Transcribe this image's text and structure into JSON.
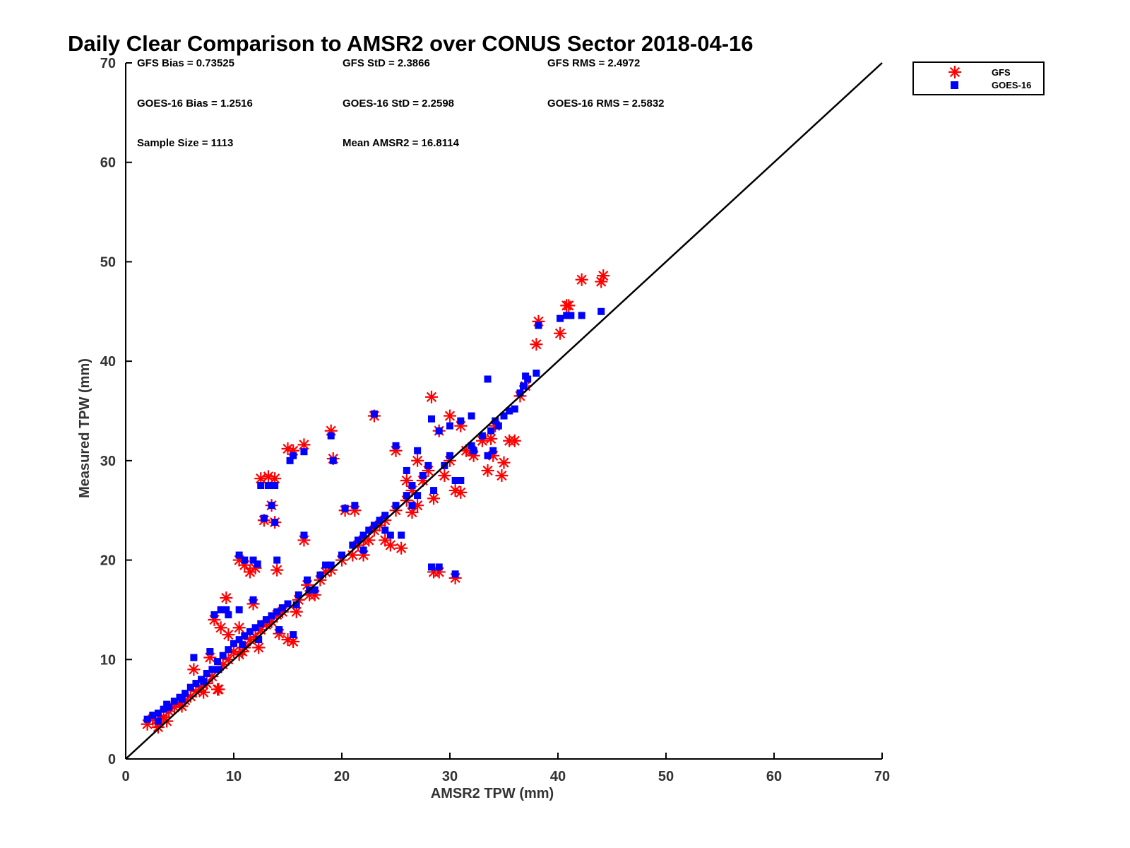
{
  "chart_data": {
    "type": "scatter",
    "title": "Daily Clear Comparison to AMSR2 over CONUS Sector 2018-04-16",
    "xlabel": "AMSR2 TPW (mm)",
    "ylabel": "Measured TPW (mm)",
    "xlim": [
      0,
      70
    ],
    "ylim": [
      0,
      70
    ],
    "xticks": [
      "0",
      "10",
      "20",
      "30",
      "40",
      "50",
      "60",
      "70"
    ],
    "yticks": [
      "0",
      "10",
      "20",
      "30",
      "40",
      "50",
      "60",
      "70"
    ],
    "grid": false,
    "legend_position": "top-right outside",
    "stats": {
      "gfs_bias": "GFS Bias = 0.73525",
      "gfs_std": "GFS StD = 2.3866",
      "gfs_rms": "GFS RMS = 2.4972",
      "goes_bias": "GOES-16 Bias = 1.2516",
      "goes_std": "GOES-16 StD = 2.2598",
      "goes_rms": "GOES-16 RMS = 2.5832",
      "sample_size": "Sample Size = 1113",
      "mean_amsr2": "Mean AMSR2 = 16.8114"
    },
    "reference_line": {
      "x": [
        0,
        70
      ],
      "y": [
        0,
        70
      ],
      "color": "#000000"
    },
    "series": [
      {
        "name": "GFS",
        "marker": "asterisk",
        "color": "#ff0000",
        "points": [
          [
            2,
            3.5
          ],
          [
            2.5,
            4
          ],
          [
            3,
            3.6
          ],
          [
            3.5,
            4.2
          ],
          [
            4,
            4.8
          ],
          [
            4.5,
            5.2
          ],
          [
            5,
            5.5
          ],
          [
            5.5,
            5.9
          ],
          [
            6,
            6.3
          ],
          [
            6.5,
            6.8
          ],
          [
            7,
            7.2
          ],
          [
            7.5,
            7.6
          ],
          [
            8,
            8.3
          ],
          [
            8.5,
            7
          ],
          [
            9,
            9.5
          ],
          [
            9.5,
            10
          ],
          [
            10,
            10.8
          ],
          [
            10.5,
            10.5
          ],
          [
            11,
            11.2
          ],
          [
            11.5,
            12
          ],
          [
            12,
            12.3
          ],
          [
            12.5,
            13
          ],
          [
            13,
            13.5
          ],
          [
            13.5,
            13.8
          ],
          [
            14,
            14.5
          ],
          [
            14.5,
            14.8
          ],
          [
            15,
            12
          ],
          [
            15.5,
            11.8
          ],
          [
            16,
            16
          ],
          [
            17,
            16.5
          ],
          [
            18,
            18
          ],
          [
            19,
            19
          ],
          [
            20,
            20
          ],
          [
            21,
            20.5
          ],
          [
            22,
            22
          ],
          [
            22.5,
            22
          ],
          [
            23,
            23
          ],
          [
            23.5,
            23.5
          ],
          [
            24,
            24
          ],
          [
            24.5,
            21.5
          ],
          [
            25,
            25
          ],
          [
            25.5,
            21.2
          ],
          [
            26,
            26
          ],
          [
            26.5,
            27
          ],
          [
            27,
            25.5
          ],
          [
            27.5,
            28
          ],
          [
            28,
            29
          ],
          [
            28.5,
            18.8
          ],
          [
            29,
            18.8
          ],
          [
            29.5,
            28.5
          ],
          [
            30,
            30
          ],
          [
            30.5,
            18.2
          ],
          [
            31,
            26.8
          ],
          [
            32,
            31
          ],
          [
            33,
            32
          ],
          [
            33.5,
            29
          ],
          [
            34,
            30.5
          ],
          [
            34.8,
            28.5
          ],
          [
            35,
            29.8
          ],
          [
            35.5,
            32
          ],
          [
            36,
            32
          ],
          [
            36.5,
            36.5
          ],
          [
            37,
            37.5
          ],
          [
            38,
            41.7
          ],
          [
            38.2,
            44
          ],
          [
            40.2,
            42.8
          ],
          [
            40.8,
            45.6
          ],
          [
            41,
            45.6
          ],
          [
            42.2,
            48.2
          ],
          [
            44,
            48
          ],
          [
            44.2,
            48.6
          ],
          [
            28.3,
            36.4
          ],
          [
            30,
            34.5
          ],
          [
            31,
            33.5
          ],
          [
            31.5,
            31
          ],
          [
            29,
            33
          ],
          [
            27,
            30
          ],
          [
            26,
            28
          ],
          [
            25,
            31
          ],
          [
            23,
            34.5
          ],
          [
            19,
            33
          ],
          [
            19.2,
            30.2
          ],
          [
            16.5,
            31.6
          ],
          [
            15,
            31.2
          ],
          [
            15.5,
            31
          ],
          [
            12.5,
            28.2
          ],
          [
            13.2,
            28.4
          ],
          [
            13.8,
            28.2
          ],
          [
            13.5,
            25.5
          ],
          [
            12.8,
            24
          ],
          [
            13.8,
            23.8
          ],
          [
            16.5,
            22
          ],
          [
            10.5,
            20
          ],
          [
            11,
            19.5
          ],
          [
            11.5,
            18.8
          ],
          [
            12,
            19.2
          ],
          [
            14,
            19
          ],
          [
            9.3,
            16.2
          ],
          [
            8.2,
            14
          ],
          [
            8.8,
            13.2
          ],
          [
            9.5,
            12.5
          ],
          [
            10.5,
            13.2
          ],
          [
            11.8,
            15.6
          ],
          [
            3,
            3.2
          ],
          [
            3.8,
            3.8
          ],
          [
            5.2,
            5.3
          ],
          [
            7.2,
            6.7
          ],
          [
            8.6,
            7
          ],
          [
            10.8,
            10.8
          ],
          [
            12.3,
            11.2
          ],
          [
            14.2,
            12.6
          ],
          [
            21.5,
            21.5
          ],
          [
            22,
            20.5
          ],
          [
            24,
            22
          ],
          [
            26.5,
            24.8
          ],
          [
            28.5,
            26.2
          ],
          [
            30.5,
            27
          ],
          [
            32.2,
            30.5
          ],
          [
            33.8,
            32.2
          ],
          [
            34.2,
            33.5
          ],
          [
            6.3,
            9
          ],
          [
            7.8,
            10.2
          ],
          [
            20.3,
            25
          ],
          [
            21.2,
            25
          ],
          [
            16.8,
            17.5
          ],
          [
            18.5,
            18.8
          ],
          [
            15.8,
            14.8
          ],
          [
            17.5,
            16.5
          ]
        ]
      },
      {
        "name": "GOES-16",
        "marker": "square",
        "color": "#0000ff",
        "points": [
          [
            2,
            4
          ],
          [
            2.5,
            4.4
          ],
          [
            3,
            4.6
          ],
          [
            3.5,
            5
          ],
          [
            4,
            5.2
          ],
          [
            4.5,
            5.8
          ],
          [
            5,
            6.2
          ],
          [
            5.5,
            6.6
          ],
          [
            6,
            7.2
          ],
          [
            6.5,
            7.6
          ],
          [
            7,
            8
          ],
          [
            7.5,
            8.6
          ],
          [
            8,
            9
          ],
          [
            8.5,
            9.8
          ],
          [
            9,
            10.4
          ],
          [
            9.5,
            11
          ],
          [
            10,
            11.6
          ],
          [
            10.5,
            12
          ],
          [
            11,
            12.4
          ],
          [
            11.5,
            12.8
          ],
          [
            12,
            13.2
          ],
          [
            12.5,
            13.6
          ],
          [
            13,
            14
          ],
          [
            13.5,
            14.4
          ],
          [
            14,
            14.8
          ],
          [
            14.5,
            15.2
          ],
          [
            15,
            15.6
          ],
          [
            15.5,
            12.5
          ],
          [
            16,
            16.5
          ],
          [
            17,
            17
          ],
          [
            18,
            18.5
          ],
          [
            19,
            19.5
          ],
          [
            20,
            20.5
          ],
          [
            21,
            21.5
          ],
          [
            22,
            22.5
          ],
          [
            22.5,
            23
          ],
          [
            23,
            23.5
          ],
          [
            23.5,
            24
          ],
          [
            24,
            24.5
          ],
          [
            24.5,
            22.5
          ],
          [
            25,
            25.5
          ],
          [
            25.5,
            22.5
          ],
          [
            26,
            26.5
          ],
          [
            26.5,
            27.5
          ],
          [
            27,
            26.5
          ],
          [
            27.5,
            28.5
          ],
          [
            28,
            29.5
          ],
          [
            28.3,
            19.3
          ],
          [
            29,
            19.3
          ],
          [
            29.5,
            29.5
          ],
          [
            30,
            30.5
          ],
          [
            30.5,
            18.6
          ],
          [
            31,
            28
          ],
          [
            32,
            31.5
          ],
          [
            33,
            32.5
          ],
          [
            33.5,
            30.5
          ],
          [
            34,
            31
          ],
          [
            34.5,
            33.5
          ],
          [
            35,
            34.5
          ],
          [
            35.5,
            35
          ],
          [
            36,
            35.2
          ],
          [
            36.5,
            36.8
          ],
          [
            37,
            38.5
          ],
          [
            38,
            38.8
          ],
          [
            38.2,
            43.6
          ],
          [
            40.2,
            44.3
          ],
          [
            40.8,
            44.6
          ],
          [
            41.2,
            44.6
          ],
          [
            42.2,
            44.6
          ],
          [
            44,
            45
          ],
          [
            28.3,
            34.2
          ],
          [
            30,
            33.5
          ],
          [
            31,
            34
          ],
          [
            32,
            34.5
          ],
          [
            33.5,
            38.2
          ],
          [
            29,
            33
          ],
          [
            27,
            31
          ],
          [
            26,
            29
          ],
          [
            25,
            31.5
          ],
          [
            23,
            34.7
          ],
          [
            19,
            32.5
          ],
          [
            19.2,
            30
          ],
          [
            16.5,
            30.9
          ],
          [
            15.2,
            30
          ],
          [
            15.5,
            30.5
          ],
          [
            12.5,
            27.5
          ],
          [
            13.2,
            27.5
          ],
          [
            13.8,
            27.5
          ],
          [
            13.5,
            25.5
          ],
          [
            12.8,
            24.2
          ],
          [
            13.8,
            23.8
          ],
          [
            16.5,
            22.5
          ],
          [
            10.5,
            20.5
          ],
          [
            11,
            20
          ],
          [
            11.8,
            20
          ],
          [
            12.2,
            19.6
          ],
          [
            14,
            20
          ],
          [
            9.3,
            15
          ],
          [
            8.2,
            14.5
          ],
          [
            8.8,
            15
          ],
          [
            9.5,
            14.5
          ],
          [
            10.5,
            15
          ],
          [
            11.8,
            16
          ],
          [
            3,
            3.8
          ],
          [
            3.8,
            5.5
          ],
          [
            5.2,
            6
          ],
          [
            7.2,
            7.8
          ],
          [
            8.6,
            9
          ],
          [
            10.8,
            11.5
          ],
          [
            12.3,
            12
          ],
          [
            14.2,
            13
          ],
          [
            21.5,
            22
          ],
          [
            22,
            21
          ],
          [
            24,
            23
          ],
          [
            26.5,
            25.5
          ],
          [
            28.5,
            27
          ],
          [
            30.5,
            28
          ],
          [
            32.2,
            31
          ],
          [
            33.8,
            33
          ],
          [
            34.2,
            34
          ],
          [
            6.3,
            10.2
          ],
          [
            7.8,
            10.8
          ],
          [
            20.3,
            25.2
          ],
          [
            21.2,
            25.5
          ],
          [
            16.8,
            18
          ],
          [
            18.5,
            19.5
          ],
          [
            15.8,
            15.5
          ],
          [
            17.5,
            17
          ],
          [
            36.8,
            37.5
          ],
          [
            37.2,
            38.2
          ]
        ]
      }
    ]
  }
}
